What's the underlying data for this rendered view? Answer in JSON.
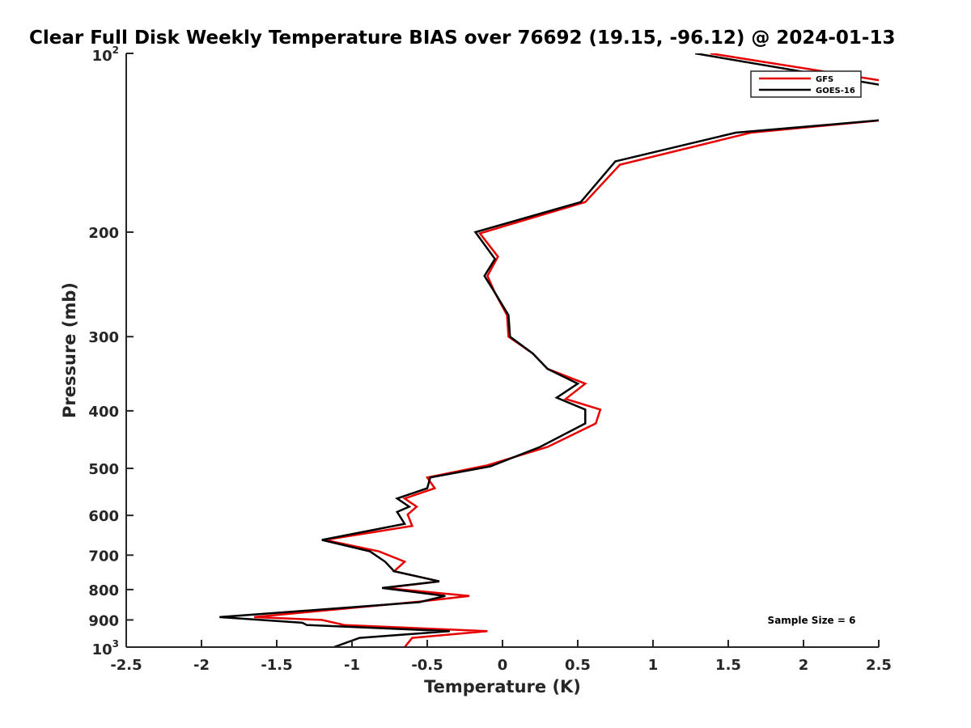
{
  "chart_data": {
    "type": "line",
    "title": "Clear Full Disk Weekly Temperature BIAS over 76692 (19.15, -96.12) @ 2024-01-13",
    "xlabel": "Temperature (K)",
    "ylabel": "Pressure (mb)",
    "xlim": [
      -2.5,
      2.5
    ],
    "ylim": [
      1000,
      100
    ],
    "yscale": "log",
    "yreversed": true,
    "x_ticks": [
      "-2.5",
      "-2",
      "-1.5",
      "-1",
      "-0.5",
      "0",
      "0.5",
      "1",
      "1.5",
      "2",
      "2.5"
    ],
    "y_ticks": [
      {
        "value": 100,
        "base": "10",
        "exp": "2"
      },
      {
        "value": 200,
        "label": "200"
      },
      {
        "value": 300,
        "label": "300"
      },
      {
        "value": 400,
        "label": "400"
      },
      {
        "value": 500,
        "label": "500"
      },
      {
        "value": 600,
        "label": "600"
      },
      {
        "value": 700,
        "label": "700"
      },
      {
        "value": 800,
        "label": "800"
      },
      {
        "value": 900,
        "label": "900"
      },
      {
        "value": 1000,
        "base": "10",
        "exp": "3"
      }
    ],
    "grid": false,
    "legend_position": "top-right",
    "annotation": "Sample Size = 6",
    "series": [
      {
        "name": "GFS",
        "color": "#e60000",
        "points": [
          [
            1.38,
            100
          ],
          [
            2.6,
            112
          ],
          [
            2.6,
            129
          ],
          [
            1.65,
            136
          ],
          [
            0.78,
            154
          ],
          [
            0.55,
            178
          ],
          [
            -0.15,
            201
          ],
          [
            -0.03,
            220
          ],
          [
            -0.1,
            237
          ],
          [
            -0.05,
            253
          ],
          [
            0.03,
            276
          ],
          [
            0.04,
            300
          ],
          [
            0.2,
            320
          ],
          [
            0.3,
            340
          ],
          [
            0.55,
            360
          ],
          [
            0.42,
            382
          ],
          [
            0.65,
            398
          ],
          [
            0.62,
            420
          ],
          [
            0.3,
            460
          ],
          [
            -0.1,
            494
          ],
          [
            -0.5,
            518
          ],
          [
            -0.45,
            540
          ],
          [
            -0.65,
            562
          ],
          [
            -0.57,
            580
          ],
          [
            -0.63,
            598
          ],
          [
            -0.6,
            625
          ],
          [
            -1.18,
            660
          ],
          [
            -0.82,
            690
          ],
          [
            -0.65,
            718
          ],
          [
            -0.72,
            745
          ],
          [
            -0.42,
            775
          ],
          [
            -0.78,
            795
          ],
          [
            -0.22,
            820
          ],
          [
            -0.55,
            838
          ],
          [
            -1.65,
            890
          ],
          [
            -1.2,
            900
          ],
          [
            -1.05,
            918
          ],
          [
            -0.1,
            940
          ],
          [
            -0.6,
            965
          ],
          [
            -0.65,
            1000
          ]
        ]
      },
      {
        "name": "GOES-16",
        "color": "#000000",
        "points": [
          [
            1.28,
            100
          ],
          [
            2.6,
            114
          ],
          [
            2.6,
            129
          ],
          [
            1.55,
            136
          ],
          [
            0.75,
            152
          ],
          [
            0.52,
            178
          ],
          [
            -0.18,
            200
          ],
          [
            -0.05,
            222
          ],
          [
            -0.12,
            237
          ],
          [
            -0.05,
            253
          ],
          [
            0.04,
            276
          ],
          [
            0.05,
            300
          ],
          [
            0.2,
            320
          ],
          [
            0.3,
            340
          ],
          [
            0.5,
            360
          ],
          [
            0.36,
            380
          ],
          [
            0.55,
            398
          ],
          [
            0.55,
            420
          ],
          [
            0.25,
            460
          ],
          [
            -0.08,
            496
          ],
          [
            -0.48,
            518
          ],
          [
            -0.5,
            540
          ],
          [
            -0.7,
            562
          ],
          [
            -0.62,
            580
          ],
          [
            -0.7,
            592
          ],
          [
            -0.65,
            620
          ],
          [
            -1.2,
            660
          ],
          [
            -0.88,
            690
          ],
          [
            -0.78,
            718
          ],
          [
            -0.72,
            745
          ],
          [
            -0.42,
            775
          ],
          [
            -0.8,
            795
          ],
          [
            -0.38,
            820
          ],
          [
            -0.55,
            840
          ],
          [
            -1.88,
            890
          ],
          [
            -1.33,
            910
          ],
          [
            -1.3,
            918
          ],
          [
            -0.35,
            940
          ],
          [
            -0.95,
            965
          ],
          [
            -1.12,
            1000
          ]
        ]
      }
    ]
  }
}
